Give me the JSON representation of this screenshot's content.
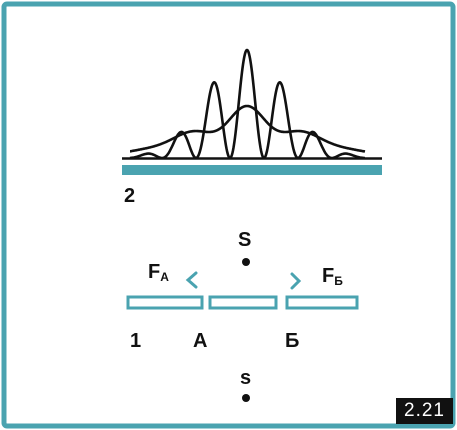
{
  "colors": {
    "frame": "#4aa3b0",
    "screen": "#4aa3b0",
    "slit_plates": "#4aa3b0",
    "curves": "#111111",
    "text": "#111111",
    "badge_bg": "#111111"
  },
  "labels": {
    "screen_number": "2",
    "plate_number": "1",
    "source_S": "S",
    "source_s": "s",
    "slit_A": "A",
    "slit_B": "Б",
    "filter_A_letter": "F",
    "filter_A_sub": "A",
    "filter_B_letter": "F",
    "filter_B_sub": "Б",
    "figure_number": "2.21"
  }
}
